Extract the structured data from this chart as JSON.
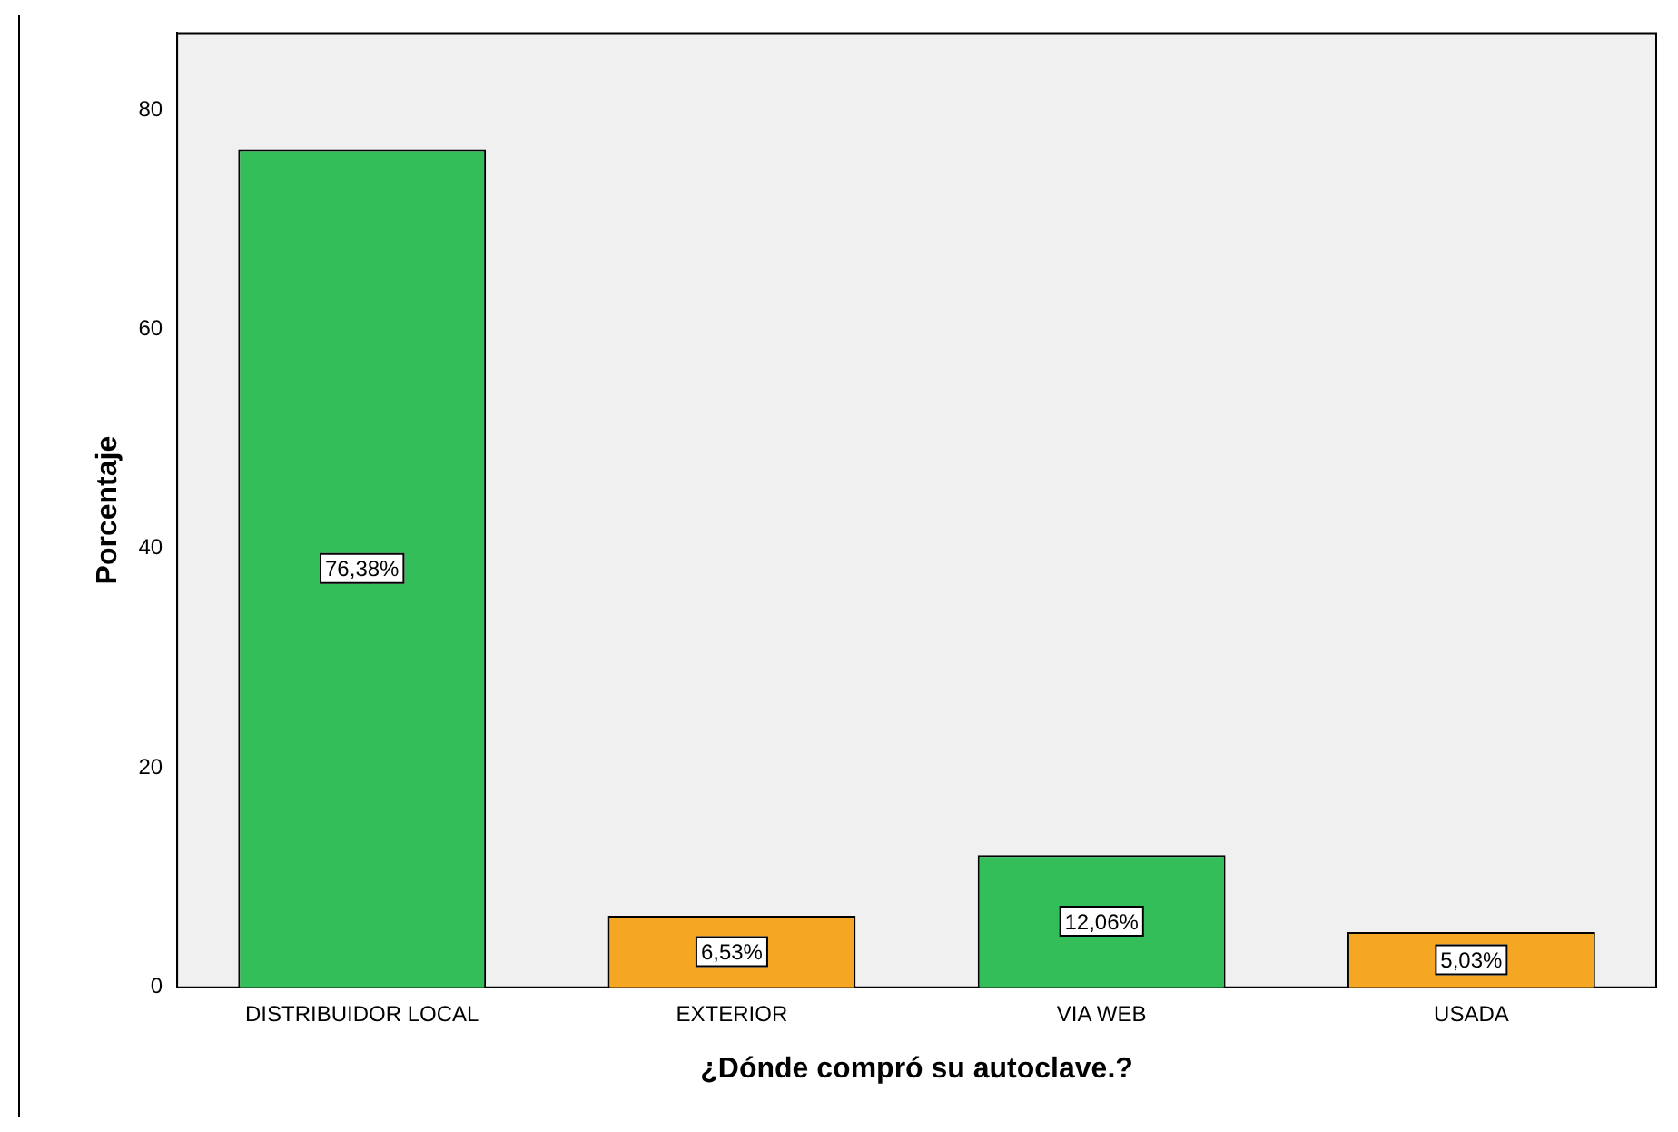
{
  "chart_data": {
    "type": "bar",
    "xlabel": "¿Dónde compró su autoclave.?",
    "ylabel": "Porcentaje",
    "categories": [
      "DISTRIBUIDOR LOCAL",
      "EXTERIOR",
      "VIA WEB",
      "USADA"
    ],
    "values": [
      76.38,
      6.53,
      12.06,
      5.03
    ],
    "colors": [
      "#34be5a",
      "#f5a623",
      "#34be5a",
      "#f5a623"
    ],
    "value_labels": [
      "76,38%",
      "6,53%",
      "12,06%",
      "5,03%"
    ],
    "ylim": [
      0,
      87
    ],
    "yticks": [
      0,
      20,
      40,
      60,
      80
    ],
    "grid": false,
    "legend": false
  }
}
